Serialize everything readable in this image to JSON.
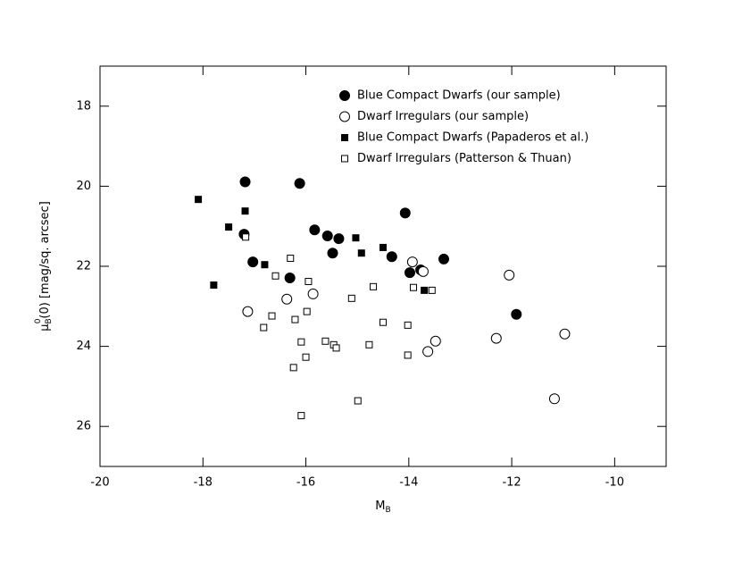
{
  "chart_data": {
    "type": "scatter",
    "xlabel": {
      "main": "M",
      "sub": "B"
    },
    "ylabel": {
      "main": "μ",
      "sub": "B",
      "sup": "0",
      "rest": "(0)  [mag/sq. arcsec]"
    },
    "xlim": [
      -20,
      -9
    ],
    "xticks": [
      -20,
      -18,
      -16,
      -14,
      -12,
      -10
    ],
    "ylim": [
      27,
      17
    ],
    "yticks": [
      18,
      20,
      22,
      24,
      26
    ],
    "legend": "top-right",
    "series": [
      {
        "name": "Blue Compact Dwarfs (our sample)",
        "marker": "circle",
        "filled": true,
        "color": "#000000",
        "x": [
          -17.18,
          -16.12,
          -17.2,
          -15.83,
          -15.58,
          -15.36,
          -15.48,
          -14.07,
          -17.03,
          -16.31,
          -14.33,
          -13.98,
          -13.77,
          -13.32,
          -11.91
        ],
        "values": [
          19.89,
          19.93,
          21.2,
          21.09,
          21.24,
          21.31,
          21.67,
          20.67,
          21.89,
          22.29,
          21.76,
          22.16,
          22.09,
          21.82,
          23.2
        ]
      },
      {
        "name": "Dwarf Irregulars (our sample)",
        "marker": "circle",
        "filled": false,
        "color": "#000000",
        "x": [
          -17.13,
          -16.37,
          -15.86,
          -13.93,
          -13.72,
          -12.05,
          -12.3,
          -13.48,
          -13.63,
          -10.97,
          -11.17
        ],
        "values": [
          23.13,
          22.82,
          22.69,
          21.89,
          22.13,
          22.22,
          23.8,
          23.87,
          24.13,
          23.69,
          25.31
        ]
      },
      {
        "name": "Blue Compact Dwarfs (Papaderos et al.)",
        "marker": "square",
        "filled": true,
        "color": "#000000",
        "x": [
          -18.09,
          -17.5,
          -17.18,
          -17.79,
          -16.8,
          -15.03,
          -14.92,
          -14.5,
          -13.7
        ],
        "values": [
          20.33,
          21.02,
          20.62,
          22.47,
          21.96,
          21.29,
          21.67,
          21.53,
          22.6
        ]
      },
      {
        "name": "Dwarf Irregulars (Patterson & Thuan)",
        "marker": "square",
        "filled": false,
        "color": "#000000",
        "x": [
          -17.17,
          -16.3,
          -16.59,
          -15.95,
          -15.11,
          -14.69,
          -13.91,
          -13.55,
          -16.66,
          -16.82,
          -16.21,
          -15.98,
          -14.5,
          -14.02,
          -16.09,
          -15.62,
          -15.46,
          -15.41,
          -14.77,
          -16.0,
          -14.02,
          -16.24,
          -14.99,
          -16.09
        ],
        "values": [
          21.27,
          21.8,
          22.24,
          22.38,
          22.8,
          22.51,
          22.53,
          22.6,
          23.24,
          23.53,
          23.33,
          23.13,
          23.4,
          23.47,
          23.89,
          23.87,
          23.96,
          24.04,
          23.96,
          24.27,
          24.22,
          24.53,
          25.36,
          25.73
        ]
      }
    ]
  }
}
